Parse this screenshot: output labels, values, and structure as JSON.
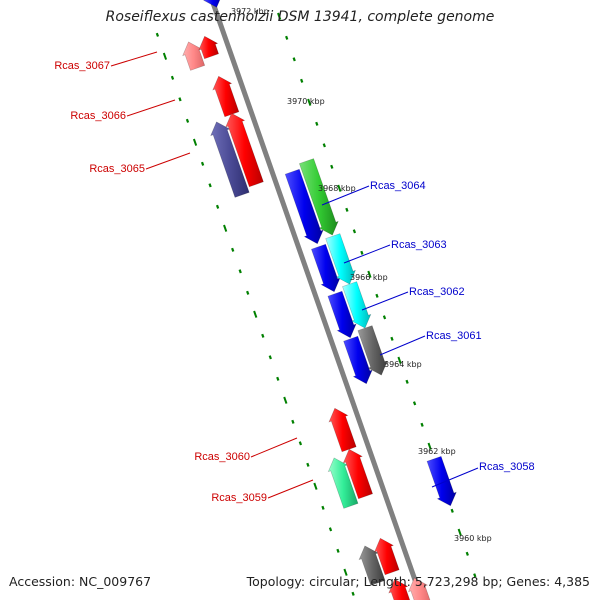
{
  "title": "Roseiflexus castenholzii DSM 13941, complete genome",
  "accession": "Accession: NC_009767",
  "summary": "Topology: circular; Length: 5,723,298 bp; Genes: 4,385",
  "colors": {
    "backbone": "#808080",
    "tick": "#008000",
    "forward_label": "#0000cc",
    "reverse_label": "#cc0000"
  },
  "kbp_marks": [
    {
      "label": "3972 kbp",
      "faded": true
    },
    {
      "label": "3970 kbp"
    },
    {
      "label": "3968 kbp"
    },
    {
      "label": "3966 kbp"
    },
    {
      "label": "3964 kbp"
    },
    {
      "label": "3962 kbp"
    },
    {
      "label": "3960 kbp"
    }
  ],
  "genes": [
    {
      "name": "Rcas_3067",
      "strand": "reverse",
      "color": "#ff0000"
    },
    {
      "name": "Rcas_3066",
      "strand": "reverse",
      "color": "#ff0000"
    },
    {
      "name": "Rcas_3065",
      "strand": "reverse",
      "color": "#ff0000"
    },
    {
      "name": "Rcas_3064",
      "strand": "forward",
      "color": "#33cc33"
    },
    {
      "name": "Rcas_3063",
      "strand": "forward",
      "color": "#00ffff"
    },
    {
      "name": "Rcas_3062",
      "strand": "forward",
      "color": "#00ffff"
    },
    {
      "name": "Rcas_3061",
      "strand": "forward",
      "color": "#666666"
    },
    {
      "name": "Rcas_3060",
      "strand": "reverse",
      "color": "#ff0000"
    },
    {
      "name": "Rcas_3059",
      "strand": "reverse",
      "color": "#33ee99"
    },
    {
      "name": "Rcas_3058",
      "strand": "forward",
      "color": "#0000ee"
    }
  ]
}
